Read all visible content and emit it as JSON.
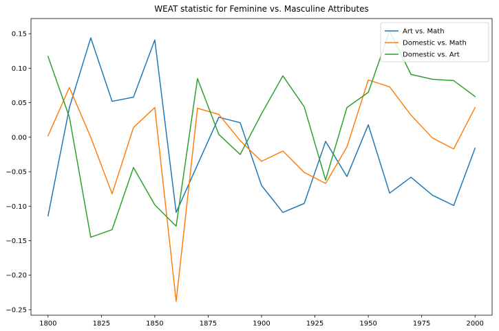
{
  "chart_data": {
    "type": "line",
    "title": "WEAT statistic for Feminine vs. Masculine Attributes",
    "xlabel": "",
    "ylabel": "",
    "x": [
      1800,
      1810,
      1820,
      1830,
      1840,
      1850,
      1860,
      1870,
      1880,
      1890,
      1900,
      1910,
      1920,
      1930,
      1940,
      1950,
      1960,
      1970,
      1980,
      1990,
      2000
    ],
    "xlim": [
      1792,
      2008
    ],
    "ylim": [
      -0.258,
      0.172
    ],
    "xticks": [
      1800,
      1825,
      1850,
      1875,
      1900,
      1925,
      1950,
      1975,
      2000
    ],
    "yticks": [
      -0.25,
      -0.2,
      -0.15,
      -0.1,
      -0.05,
      0.0,
      0.05,
      0.1,
      0.15
    ],
    "ytick_labels": [
      "−0.25",
      "−0.20",
      "−0.15",
      "−0.10",
      "−0.05",
      "0.00",
      "0.05",
      "0.10",
      "0.15"
    ],
    "legend_position": "top-right",
    "series": [
      {
        "name": "Art vs. Math",
        "color": "#1f77b4",
        "values": [
          -0.114,
          0.043,
          0.144,
          0.052,
          0.058,
          0.141,
          -0.109,
          -0.04,
          0.029,
          0.021,
          -0.07,
          -0.109,
          -0.096,
          -0.006,
          -0.057,
          0.018,
          -0.081,
          -0.058,
          -0.084,
          -0.099,
          -0.016
        ]
      },
      {
        "name": "Domestic vs. Math",
        "color": "#ff7f0e",
        "values": [
          0.002,
          0.072,
          0.0,
          -0.082,
          0.014,
          0.043,
          -0.238,
          0.042,
          0.033,
          -0.005,
          -0.035,
          -0.02,
          -0.051,
          -0.067,
          -0.014,
          0.083,
          0.073,
          0.032,
          -0.001,
          -0.017,
          0.043
        ]
      },
      {
        "name": "Domestic vs. Art",
        "color": "#2ca02c",
        "values": [
          0.117,
          0.029,
          -0.145,
          -0.134,
          -0.044,
          -0.098,
          -0.129,
          0.085,
          0.004,
          -0.025,
          0.034,
          0.089,
          0.044,
          -0.062,
          0.043,
          0.065,
          0.154,
          0.091,
          0.084,
          0.082,
          0.059
        ]
      }
    ]
  }
}
